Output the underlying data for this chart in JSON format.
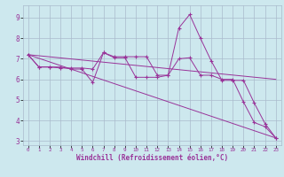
{
  "xlabel": "Windchill (Refroidissement éolien,°C)",
  "bg_color": "#cde8ee",
  "line_color": "#993399",
  "grid_color": "#aabbcc",
  "axis_bg": "#8866aa",
  "xlim": [
    -0.5,
    23.5
  ],
  "ylim": [
    2.8,
    9.6
  ],
  "yticks": [
    3,
    4,
    5,
    6,
    7,
    8,
    9
  ],
  "xticks": [
    0,
    1,
    2,
    3,
    4,
    5,
    6,
    7,
    8,
    9,
    10,
    11,
    12,
    13,
    14,
    15,
    16,
    17,
    18,
    19,
    20,
    21,
    22,
    23
  ],
  "series1_x": [
    0,
    1,
    2,
    3,
    4,
    5,
    6,
    7,
    8,
    9,
    10,
    11,
    12,
    13,
    14,
    15,
    16,
    17,
    18,
    19,
    20,
    21,
    22,
    23
  ],
  "series1_y": [
    7.2,
    6.6,
    6.6,
    6.6,
    6.5,
    6.5,
    5.85,
    7.3,
    7.05,
    7.05,
    6.1,
    6.1,
    6.1,
    6.2,
    8.5,
    9.15,
    8.0,
    6.9,
    5.95,
    5.95,
    5.95,
    4.85,
    3.85,
    3.15
  ],
  "series2_x": [
    0,
    1,
    2,
    3,
    4,
    5,
    6,
    7,
    8,
    9,
    10,
    11,
    12,
    13,
    14,
    15,
    16,
    17,
    18,
    19,
    20,
    21,
    22,
    23
  ],
  "series2_y": [
    7.2,
    6.6,
    6.6,
    6.55,
    6.55,
    6.55,
    6.5,
    7.3,
    7.1,
    7.1,
    7.1,
    7.1,
    6.2,
    6.2,
    7.0,
    7.05,
    6.2,
    6.2,
    6.0,
    6.0,
    4.9,
    3.9,
    3.7,
    3.15
  ],
  "trend1_x": [
    0,
    23
  ],
  "trend1_y": [
    7.2,
    6.0
  ],
  "trend2_x": [
    0,
    23
  ],
  "trend2_y": [
    7.2,
    3.15
  ]
}
